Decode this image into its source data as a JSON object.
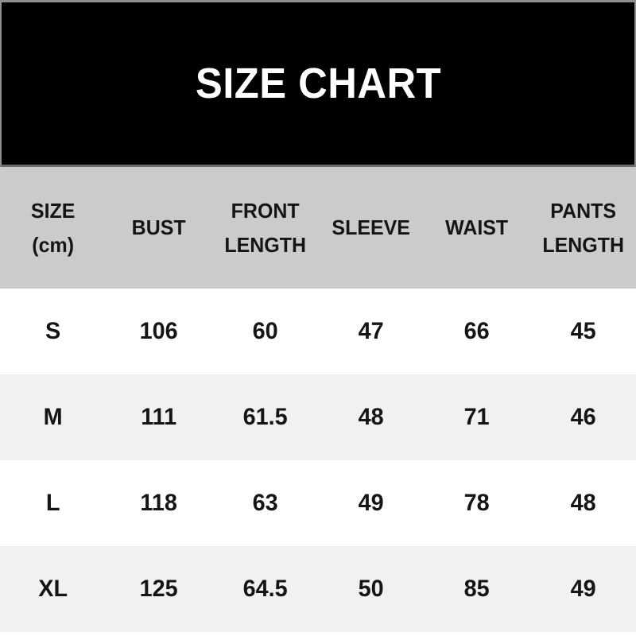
{
  "banner": {
    "title": "SIZE CHART"
  },
  "table": {
    "headers": [
      "SIZE\n(cm)",
      "BUST",
      "FRONT\nLENGTH",
      "SLEEVE",
      "WAIST",
      "PANTS\nLENGTH"
    ],
    "rows": [
      {
        "cells": [
          "S",
          "106",
          "60",
          "47",
          "66",
          "45"
        ]
      },
      {
        "cells": [
          "M",
          "111",
          "61.5",
          "48",
          "71",
          "46"
        ]
      },
      {
        "cells": [
          "L",
          "118",
          "63",
          "49",
          "78",
          "48"
        ]
      },
      {
        "cells": [
          "XL",
          "125",
          "64.5",
          "50",
          "85",
          "49"
        ]
      }
    ]
  },
  "chart_data": {
    "type": "table",
    "title": "SIZE CHART",
    "unit": "cm",
    "columns": [
      "SIZE (cm)",
      "BUST",
      "FRONT LENGTH",
      "SLEEVE",
      "WAIST",
      "PANTS LENGTH"
    ],
    "rows": [
      [
        "S",
        106,
        60,
        47,
        66,
        45
      ],
      [
        "M",
        111,
        61.5,
        48,
        71,
        46
      ],
      [
        "L",
        118,
        63,
        49,
        78,
        48
      ],
      [
        "XL",
        125,
        64.5,
        50,
        85,
        49
      ]
    ]
  },
  "colors": {
    "banner_bg": "#000000",
    "banner_text": "#ffffff",
    "header_row_bg": "#cbcbcb",
    "row_bg": "#ffffff",
    "row_alt_bg": "#f1f1f1",
    "text": "#151515"
  }
}
